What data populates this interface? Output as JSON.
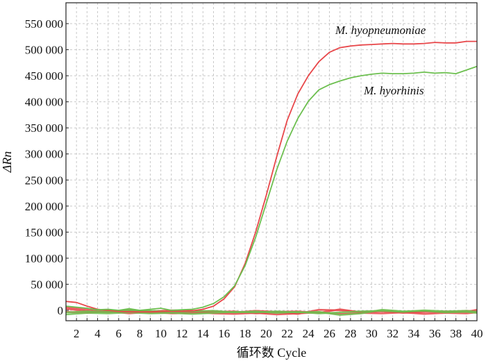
{
  "chart_data": {
    "type": "line",
    "title": "",
    "xlabel": "循环数 Cycle",
    "ylabel": "ΔRn",
    "xlim": [
      1,
      40
    ],
    "ylim": [
      -20000,
      590000
    ],
    "x_ticks": [
      2,
      4,
      6,
      8,
      10,
      12,
      14,
      16,
      18,
      20,
      22,
      24,
      26,
      28,
      30,
      32,
      34,
      36,
      38,
      40
    ],
    "y_ticks": [
      0,
      50000,
      100000,
      150000,
      200000,
      250000,
      300000,
      350000,
      400000,
      450000,
      500000,
      550000
    ],
    "y_tick_labels": [
      "0",
      "50 000",
      "100 000",
      "150 000",
      "200 000",
      "250 000",
      "300 000",
      "350 000",
      "400 000",
      "450 000",
      "500 000",
      "550 000"
    ],
    "grid": true,
    "series": [
      {
        "name": "M. hyopneumoniae",
        "color": "#e8474a",
        "x": [
          1,
          2,
          3,
          4,
          5,
          6,
          7,
          8,
          9,
          10,
          11,
          12,
          13,
          14,
          15,
          16,
          17,
          18,
          19,
          20,
          21,
          22,
          23,
          24,
          25,
          26,
          27,
          28,
          29,
          30,
          31,
          32,
          33,
          34,
          35,
          36,
          37,
          38,
          39,
          40
        ],
        "values": [
          17000,
          15000,
          8000,
          2000,
          0,
          -2000,
          -3000,
          -3000,
          -3000,
          -2000,
          -2000,
          -2000,
          -1000,
          2000,
          8000,
          22000,
          45000,
          90000,
          150000,
          220000,
          295000,
          365000,
          415000,
          450000,
          477000,
          495000,
          504000,
          507000,
          509000,
          510000,
          511000,
          512000,
          511000,
          511000,
          512000,
          514000,
          513000,
          513000,
          516000,
          516000
        ]
      },
      {
        "name": "M. hyorhinis",
        "color": "#6cbf4f",
        "x": [
          1,
          2,
          3,
          4,
          5,
          6,
          7,
          8,
          9,
          10,
          11,
          12,
          13,
          14,
          15,
          16,
          17,
          18,
          19,
          20,
          21,
          22,
          23,
          24,
          25,
          26,
          27,
          28,
          29,
          30,
          31,
          32,
          33,
          34,
          35,
          36,
          37,
          38,
          39,
          40
        ],
        "values": [
          8000,
          6000,
          4000,
          1000,
          2000,
          0,
          3000,
          0,
          2000,
          4000,
          0,
          1000,
          2000,
          6000,
          13000,
          26000,
          47000,
          86000,
          140000,
          205000,
          270000,
          325000,
          368000,
          401000,
          423000,
          433000,
          440000,
          446000,
          450000,
          453000,
          455000,
          454000,
          454000,
          455000,
          457000,
          455000,
          456000,
          454000,
          461000,
          468000
        ]
      },
      {
        "name": "",
        "color": "#e8474a",
        "x": [
          1,
          3,
          5,
          7,
          9,
          11,
          13,
          15,
          17,
          19,
          21,
          23,
          25,
          27,
          29,
          31,
          33,
          35,
          37,
          39,
          40
        ],
        "values": [
          3000,
          -2000,
          -4000,
          -2000,
          -5000,
          -4000,
          -3000,
          -6000,
          -7000,
          -5000,
          -8000,
          -6000,
          -4000,
          -7000,
          -5000,
          -6000,
          -4000,
          -7000,
          -5000,
          -6000,
          -4000
        ]
      },
      {
        "name": "",
        "color": "#e8474a",
        "x": [
          1,
          3,
          5,
          7,
          9,
          11,
          13,
          15,
          17,
          19,
          21,
          23,
          25,
          27,
          29,
          31,
          33,
          35,
          37,
          39,
          40
        ],
        "values": [
          -3000,
          -5000,
          -2000,
          -6000,
          -3000,
          -6000,
          -5000,
          -3000,
          -2000,
          -6000,
          -4000,
          -7000,
          1000,
          0,
          -3000,
          -2000,
          -5000,
          -3000,
          -2000,
          -3000,
          1000
        ]
      },
      {
        "name": "",
        "color": "#e8474a",
        "x": [
          1,
          3,
          5,
          7,
          9,
          11,
          13,
          15,
          17,
          19,
          21,
          23,
          25,
          27,
          29,
          31,
          33,
          35,
          37,
          39,
          40
        ],
        "values": [
          6000,
          1000,
          -1000,
          0,
          -2000,
          0,
          -1000,
          -2000,
          -4000,
          -1000,
          -3000,
          -2000,
          -5000,
          2000,
          -4000,
          -1000,
          -3000,
          -2000,
          -4000,
          -1000,
          -2000
        ]
      },
      {
        "name": "",
        "color": "#6cbf4f",
        "x": [
          1,
          3,
          5,
          7,
          9,
          11,
          13,
          15,
          17,
          19,
          21,
          23,
          25,
          27,
          29,
          31,
          33,
          35,
          37,
          39,
          40
        ],
        "values": [
          -8000,
          -5000,
          -6000,
          -4000,
          -6000,
          -5000,
          -7000,
          -5000,
          -3000,
          -4000,
          -2000,
          -4000,
          -3000,
          -9000,
          -6000,
          1000,
          -2000,
          -1000,
          -4000,
          -3000,
          -5000
        ]
      },
      {
        "name": "",
        "color": "#6cbf4f",
        "x": [
          1,
          3,
          5,
          7,
          9,
          11,
          13,
          15,
          17,
          19,
          21,
          23,
          25,
          27,
          29,
          31,
          33,
          35,
          37,
          39,
          40
        ],
        "values": [
          -4000,
          -2000,
          -3000,
          0,
          -1000,
          -3000,
          -2000,
          -1000,
          -4000,
          -2000,
          -5000,
          -3000,
          -6000,
          -4000,
          -2000,
          -1000,
          -3000,
          0,
          -2000,
          -1000,
          -3000
        ]
      }
    ]
  }
}
